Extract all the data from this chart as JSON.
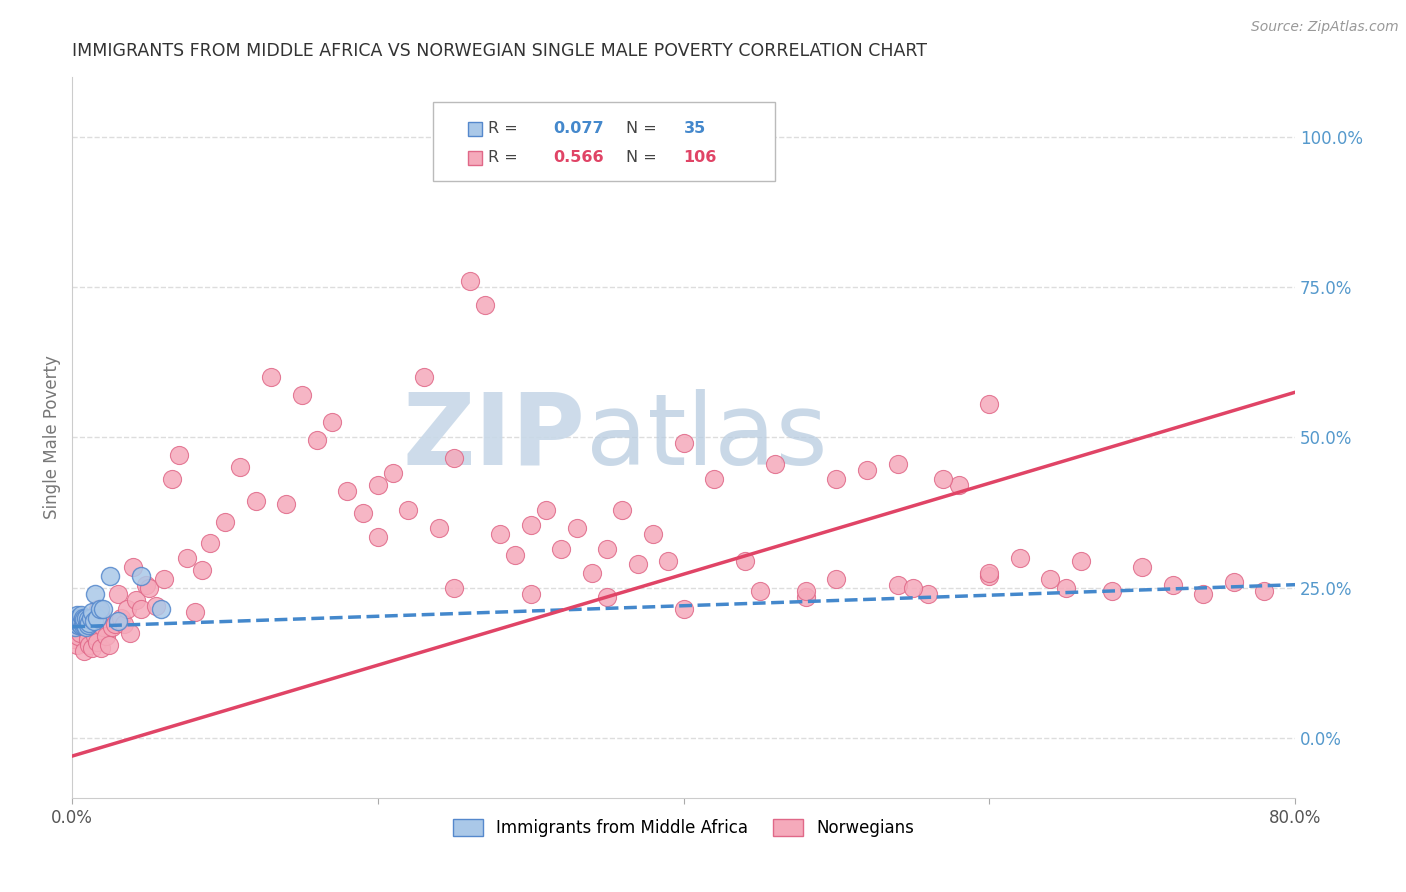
{
  "title": "IMMIGRANTS FROM MIDDLE AFRICA VS NORWEGIAN SINGLE MALE POVERTY CORRELATION CHART",
  "source": "Source: ZipAtlas.com",
  "ylabel": "Single Male Poverty",
  "x_min": 0.0,
  "x_max": 0.8,
  "y_min": -0.1,
  "y_max": 1.1,
  "y_ticks_right": [
    0.0,
    0.25,
    0.5,
    0.75,
    1.0
  ],
  "y_tick_labels_right": [
    "0.0%",
    "25.0%",
    "50.0%",
    "75.0%",
    "100.0%"
  ],
  "legend1_R": "0.077",
  "legend1_N": "35",
  "legend2_R": "0.566",
  "legend2_N": "106",
  "series1_color": "#aac8e8",
  "series1_edge": "#5588cc",
  "series2_color": "#f5aabb",
  "series2_edge": "#e06888",
  "trendline1_color": "#4488cc",
  "trendline2_color": "#e04466",
  "watermark_color": "#ccd8e8",
  "grid_color": "#dddddd",
  "title_color": "#333333",
  "right_label_color": "#5599cc",
  "blue_dots_x": [
    0.001,
    0.002,
    0.002,
    0.003,
    0.003,
    0.003,
    0.004,
    0.004,
    0.004,
    0.005,
    0.005,
    0.005,
    0.006,
    0.006,
    0.006,
    0.007,
    0.007,
    0.008,
    0.008,
    0.009,
    0.009,
    0.01,
    0.01,
    0.011,
    0.012,
    0.013,
    0.014,
    0.015,
    0.016,
    0.018,
    0.02,
    0.025,
    0.03,
    0.045,
    0.058
  ],
  "blue_dots_y": [
    0.195,
    0.2,
    0.185,
    0.19,
    0.195,
    0.205,
    0.188,
    0.195,
    0.2,
    0.19,
    0.195,
    0.2,
    0.188,
    0.195,
    0.205,
    0.188,
    0.2,
    0.19,
    0.198,
    0.185,
    0.2,
    0.188,
    0.198,
    0.192,
    0.2,
    0.21,
    0.195,
    0.24,
    0.2,
    0.215,
    0.215,
    0.27,
    0.195,
    0.27,
    0.215
  ],
  "pink_dots_x": [
    0.001,
    0.002,
    0.003,
    0.004,
    0.005,
    0.006,
    0.007,
    0.008,
    0.009,
    0.01,
    0.011,
    0.012,
    0.013,
    0.014,
    0.015,
    0.016,
    0.017,
    0.018,
    0.019,
    0.02,
    0.022,
    0.024,
    0.026,
    0.028,
    0.03,
    0.032,
    0.034,
    0.036,
    0.038,
    0.04,
    0.042,
    0.045,
    0.048,
    0.05,
    0.055,
    0.06,
    0.065,
    0.07,
    0.075,
    0.08,
    0.085,
    0.09,
    0.1,
    0.11,
    0.12,
    0.13,
    0.14,
    0.15,
    0.16,
    0.17,
    0.18,
    0.19,
    0.2,
    0.21,
    0.22,
    0.23,
    0.24,
    0.25,
    0.26,
    0.27,
    0.28,
    0.29,
    0.3,
    0.31,
    0.32,
    0.33,
    0.34,
    0.35,
    0.36,
    0.37,
    0.38,
    0.39,
    0.4,
    0.42,
    0.44,
    0.46,
    0.48,
    0.5,
    0.52,
    0.54,
    0.56,
    0.58,
    0.6,
    0.62,
    0.64,
    0.66,
    0.68,
    0.7,
    0.72,
    0.74,
    0.76,
    0.78,
    0.54,
    0.57,
    0.6,
    0.48,
    0.2,
    0.25,
    0.3,
    0.35,
    0.4,
    0.45,
    0.5,
    0.55,
    0.6,
    0.65
  ],
  "pink_dots_y": [
    0.165,
    0.175,
    0.155,
    0.17,
    0.175,
    0.2,
    0.185,
    0.145,
    0.18,
    0.165,
    0.155,
    0.195,
    0.15,
    0.185,
    0.17,
    0.16,
    0.215,
    0.205,
    0.15,
    0.185,
    0.17,
    0.155,
    0.185,
    0.19,
    0.24,
    0.2,
    0.19,
    0.215,
    0.175,
    0.285,
    0.23,
    0.215,
    0.255,
    0.25,
    0.22,
    0.265,
    0.43,
    0.47,
    0.3,
    0.21,
    0.28,
    0.325,
    0.36,
    0.45,
    0.395,
    0.6,
    0.39,
    0.57,
    0.495,
    0.525,
    0.41,
    0.375,
    0.42,
    0.44,
    0.38,
    0.6,
    0.35,
    0.465,
    0.76,
    0.72,
    0.34,
    0.305,
    0.355,
    0.38,
    0.315,
    0.35,
    0.275,
    0.315,
    0.38,
    0.29,
    0.34,
    0.295,
    0.49,
    0.43,
    0.295,
    0.455,
    0.235,
    0.43,
    0.445,
    0.255,
    0.24,
    0.42,
    0.27,
    0.3,
    0.265,
    0.295,
    0.245,
    0.285,
    0.255,
    0.24,
    0.26,
    0.245,
    0.455,
    0.43,
    0.555,
    0.245,
    0.335,
    0.25,
    0.24,
    0.235,
    0.215,
    0.245,
    0.265,
    0.25,
    0.275,
    0.25
  ],
  "trendline1_x0": 0.0,
  "trendline1_y0": 0.185,
  "trendline1_x1": 0.8,
  "trendline1_y1": 0.255,
  "trendline2_x0": 0.0,
  "trendline2_y0": -0.03,
  "trendline2_x1": 0.8,
  "trendline2_y1": 0.575
}
